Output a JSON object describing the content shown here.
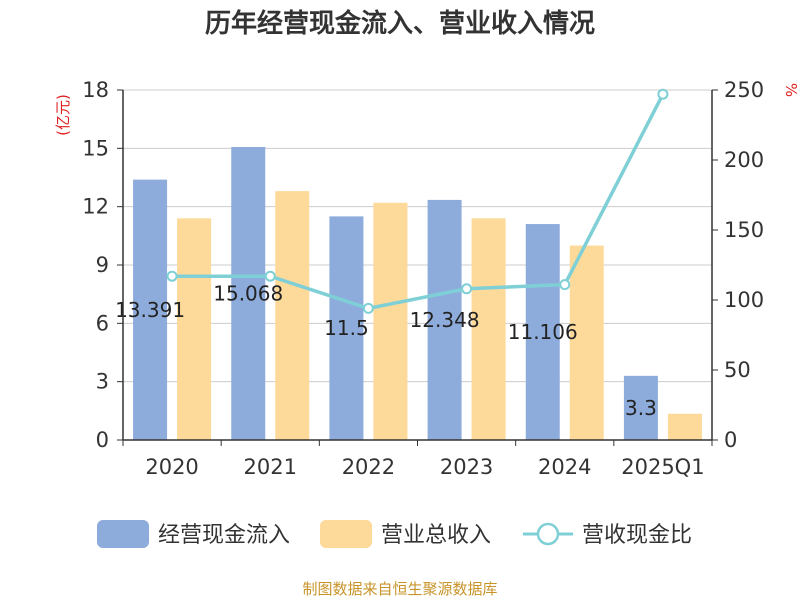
{
  "chart_data": {
    "type": "bar",
    "title": "历年经营现金流入、营业收入情况",
    "categories": [
      "2020",
      "2021",
      "2022",
      "2023",
      "2024",
      "2025Q1"
    ],
    "left_axis": {
      "unit": "(亿元)",
      "ylim": [
        0,
        18
      ],
      "ticks": [
        0,
        3,
        6,
        9,
        12,
        15,
        18
      ]
    },
    "right_axis": {
      "unit": "%",
      "ylim": [
        0,
        250
      ],
      "ticks": [
        0,
        50,
        100,
        150,
        200,
        250
      ]
    },
    "series": [
      {
        "name": "经营现金流入",
        "type": "bar",
        "axis": "left",
        "color": "#8eacdb",
        "values": [
          13.391,
          15.068,
          11.5,
          12.348,
          11.106,
          3.3
        ]
      },
      {
        "name": "营业总收入",
        "type": "bar",
        "axis": "left",
        "color": "#fdd99a",
        "values": [
          11.4,
          12.8,
          12.2,
          11.4,
          10.0,
          1.35
        ]
      },
      {
        "name": "营收现金比",
        "type": "line",
        "axis": "right",
        "color": "#7fd0d6",
        "values": [
          117,
          117,
          94,
          108,
          111,
          247
        ]
      }
    ],
    "data_labels": [
      "13.391",
      "15.068",
      "11.5",
      "12.348",
      "11.106",
      "3.3"
    ],
    "grid": true,
    "legend_position": "bottom"
  },
  "source": "制图数据来自恒生聚源数据库"
}
